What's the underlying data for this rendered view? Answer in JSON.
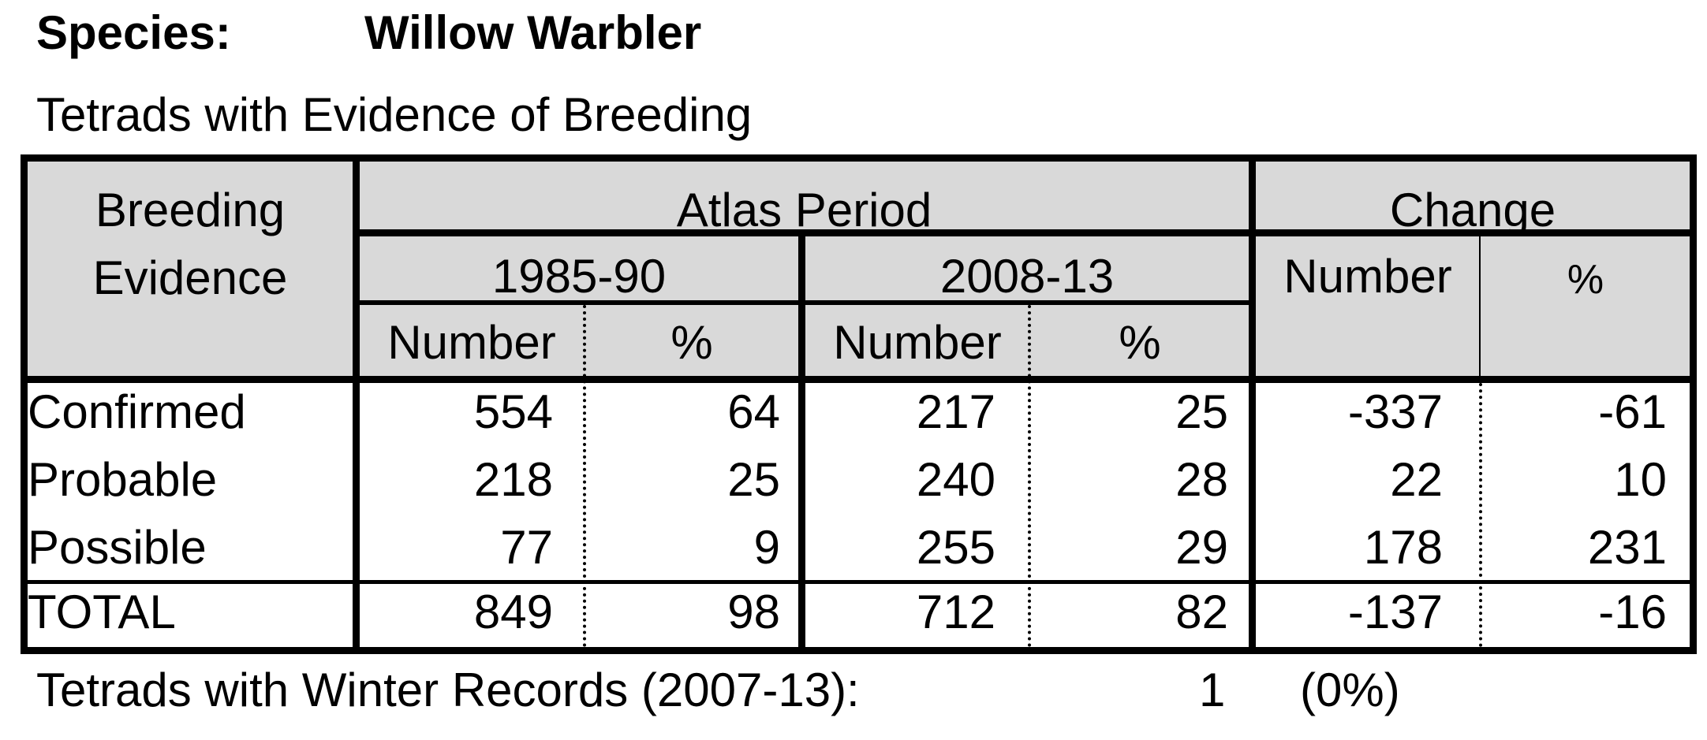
{
  "header": {
    "species_label": "Species:",
    "species_name": "Willow Warbler",
    "subtitle": "Tetrads with Evidence of Breeding"
  },
  "table": {
    "col_breeding_line1": "Breeding",
    "col_breeding_line2": "Evidence",
    "atlas_period": "Atlas Period",
    "change": "Change",
    "period1": "1985-90",
    "period2": "2008-13",
    "number_label": "Number",
    "pct_label": "%",
    "rows": [
      {
        "label": "Confirmed",
        "n1": "554",
        "p1": "64",
        "n2": "217",
        "p2": "25",
        "cn": "-337",
        "cp": "-61"
      },
      {
        "label": "Probable",
        "n1": "218",
        "p1": "25",
        "n2": "240",
        "p2": "28",
        "cn": "22",
        "cp": "10"
      },
      {
        "label": "Possible",
        "n1": "77",
        "p1": "9",
        "n2": "255",
        "p2": "29",
        "cn": "178",
        "cp": "231"
      }
    ],
    "total": {
      "label": "TOTAL",
      "n1": "849",
      "p1": "98",
      "n2": "712",
      "p2": "82",
      "cn": "-137",
      "cp": "-16"
    }
  },
  "footer": {
    "label": "Tetrads with Winter Records (2007-13):",
    "count": "1",
    "percent": "(0%)"
  },
  "colors": {
    "header_fill": "#d9d9d9",
    "border": "#000000"
  }
}
